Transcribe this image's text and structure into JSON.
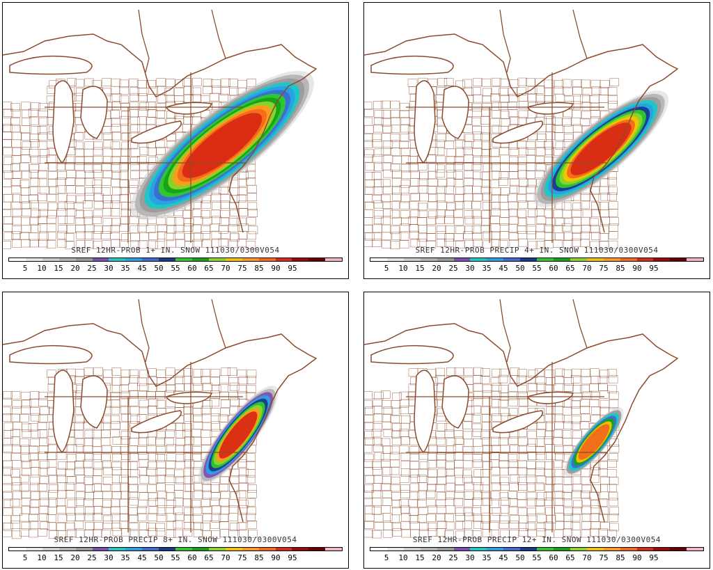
{
  "colorbar": {
    "labels": [
      "5",
      "10",
      "15",
      "20",
      "25",
      "30",
      "35",
      "45",
      "50",
      "55",
      "60",
      "65",
      "70",
      "75",
      "85",
      "90",
      "95"
    ],
    "colors": [
      "#ffffff",
      "#e6e6e6",
      "#cfcfcf",
      "#b5b5b5",
      "#9b9b9b",
      "#7f4fb8",
      "#19c8c8",
      "#2aa0e6",
      "#3b6fd0",
      "#1a3a8c",
      "#2fc82f",
      "#16a316",
      "#8ed42a",
      "#f5c400",
      "#ff9a1a",
      "#f26a1a",
      "#d82a14",
      "#9b0a0a",
      "#6b0000",
      "#f6b3c4"
    ]
  },
  "panels": [
    {
      "title": "SREF 12HR-PROB 1+ IN. SNOW 111030/0300V054",
      "plume": {
        "cx": 315,
        "cy": 205,
        "rx": 155,
        "ry": 44,
        "angle": -38,
        "levels": 12
      }
    },
    {
      "title": "SREF 12HR-PROB PRECIP 4+ IN. SNOW 111030/0300V054",
      "plume": {
        "cx": 340,
        "cy": 210,
        "rx": 115,
        "ry": 32,
        "angle": -40,
        "levels": 11
      }
    },
    {
      "title": "SREF 12HR-PROB PRECIP 8+ IN. SNOW 111030/0300V054",
      "plume": {
        "cx": 338,
        "cy": 205,
        "rx": 80,
        "ry": 20,
        "angle": -52,
        "levels": 9
      }
    },
    {
      "title": "SREF 12HR-PROB PRECIP 12+ IN. SNOW 111030/0300V054",
      "plume": {
        "cx": 330,
        "cy": 215,
        "rx": 55,
        "ry": 14,
        "angle": -50,
        "levels": 7
      }
    }
  ]
}
